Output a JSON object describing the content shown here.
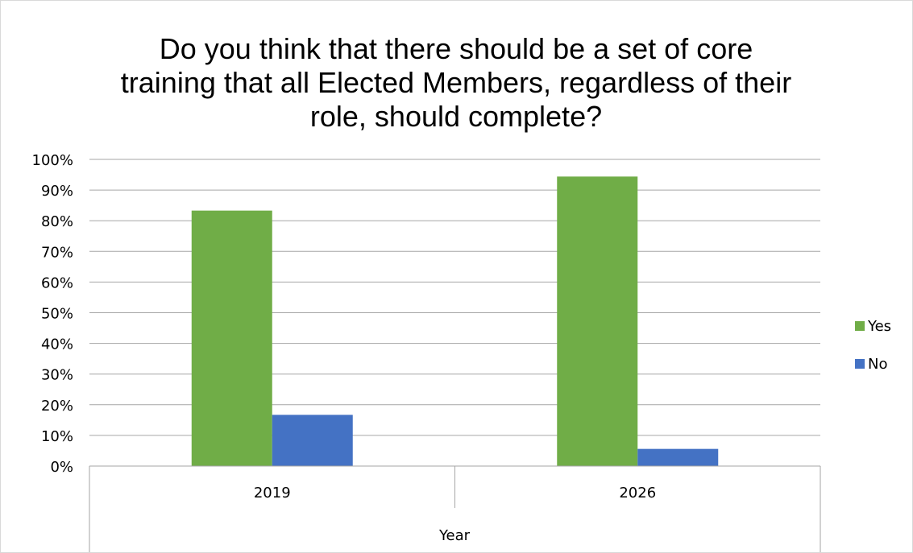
{
  "chart_data": {
    "type": "bar",
    "title_lines": [
      "Do you think that there should be a set of core",
      "training that all Elected Members, regardless of their",
      "role, should complete?"
    ],
    "categories": [
      "2019",
      "2026"
    ],
    "series": [
      {
        "name": "Yes",
        "color": "#70ad47",
        "values": [
          83.3,
          94.4
        ]
      },
      {
        "name": "No",
        "color": "#4472c4",
        "values": [
          16.7,
          5.6
        ]
      }
    ],
    "xlabel": "Year",
    "ylabel": "",
    "ylim": [
      0,
      100
    ],
    "yticks": [
      0,
      10,
      20,
      30,
      40,
      50,
      60,
      70,
      80,
      90,
      100
    ],
    "ytick_labels": [
      "0%",
      "10%",
      "20%",
      "30%",
      "40%",
      "50%",
      "60%",
      "70%",
      "80%",
      "90%",
      "100%"
    ],
    "grid": true,
    "gridline_color": "#a6a6a6",
    "legend_position": "right"
  }
}
